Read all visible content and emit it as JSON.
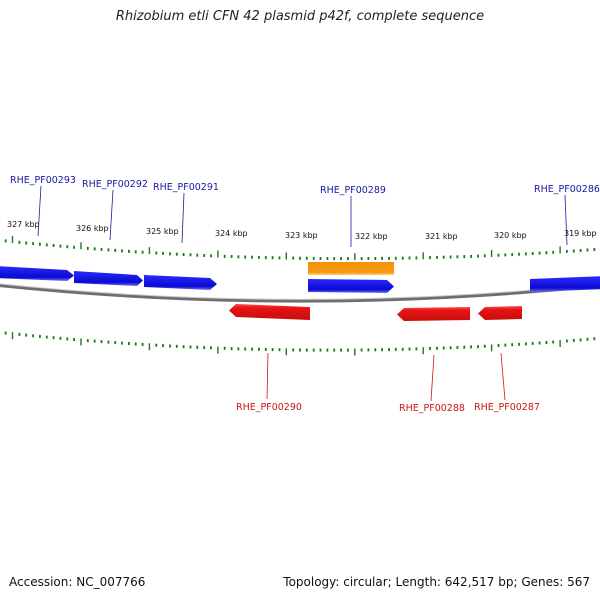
{
  "title": "Rhizobium etli CFN 42 plasmid p42f, complete sequence",
  "footer": {
    "accession": "Accession: NC_007766",
    "summary": "Topology: circular; Length: 642,517 bp; Genes: 567"
  },
  "colors": {
    "forward_gene": "#1414e6",
    "reverse_gene": "#e61414",
    "other_feature": "#f5900a",
    "backbone": "#8c8c8c",
    "ticks": "#1a7a1a",
    "label_forward": "#1a1aa0",
    "label_reverse": "#c81818"
  },
  "scale": {
    "unit": "kbp",
    "ticks": [
      {
        "kbp": 327,
        "label": "327 kbp"
      },
      {
        "kbp": 326,
        "label": "326 kbp"
      },
      {
        "kbp": 325,
        "label": "325 kbp"
      },
      {
        "kbp": 324,
        "label": "324 kbp"
      },
      {
        "kbp": 323,
        "label": "323 kbp"
      },
      {
        "kbp": 322,
        "label": "322 kbp"
      },
      {
        "kbp": 321,
        "label": "321 kbp"
      },
      {
        "kbp": 320,
        "label": "320 kbp"
      },
      {
        "kbp": 319,
        "label": "319 kbp"
      }
    ]
  },
  "genes": [
    {
      "name": "RHE_PF00293",
      "strand": "forward",
      "type": "gene",
      "label": "RHE_PF00293"
    },
    {
      "name": "RHE_PF00292",
      "strand": "forward",
      "type": "gene",
      "label": "RHE_PF00292"
    },
    {
      "name": "RHE_PF00291",
      "strand": "forward",
      "type": "gene",
      "label": "RHE_PF00291"
    },
    {
      "name": "RHE_PF00289",
      "strand": "forward",
      "type": "gene",
      "label": "RHE_PF00289"
    },
    {
      "name": "RHE_PF00286",
      "strand": "forward",
      "type": "gene",
      "label": "RHE_PF00286"
    },
    {
      "name": "RHE_PF00290",
      "strand": "reverse",
      "type": "gene",
      "label": "RHE_PF00290"
    },
    {
      "name": "RHE_PF00288",
      "strand": "reverse",
      "type": "gene",
      "label": "RHE_PF00288"
    },
    {
      "name": "RHE_PF00287",
      "strand": "reverse",
      "type": "gene",
      "label": "RHE_PF00287"
    },
    {
      "name": "feature-322kbp",
      "strand": "forward",
      "type": "other",
      "label": ""
    }
  ]
}
